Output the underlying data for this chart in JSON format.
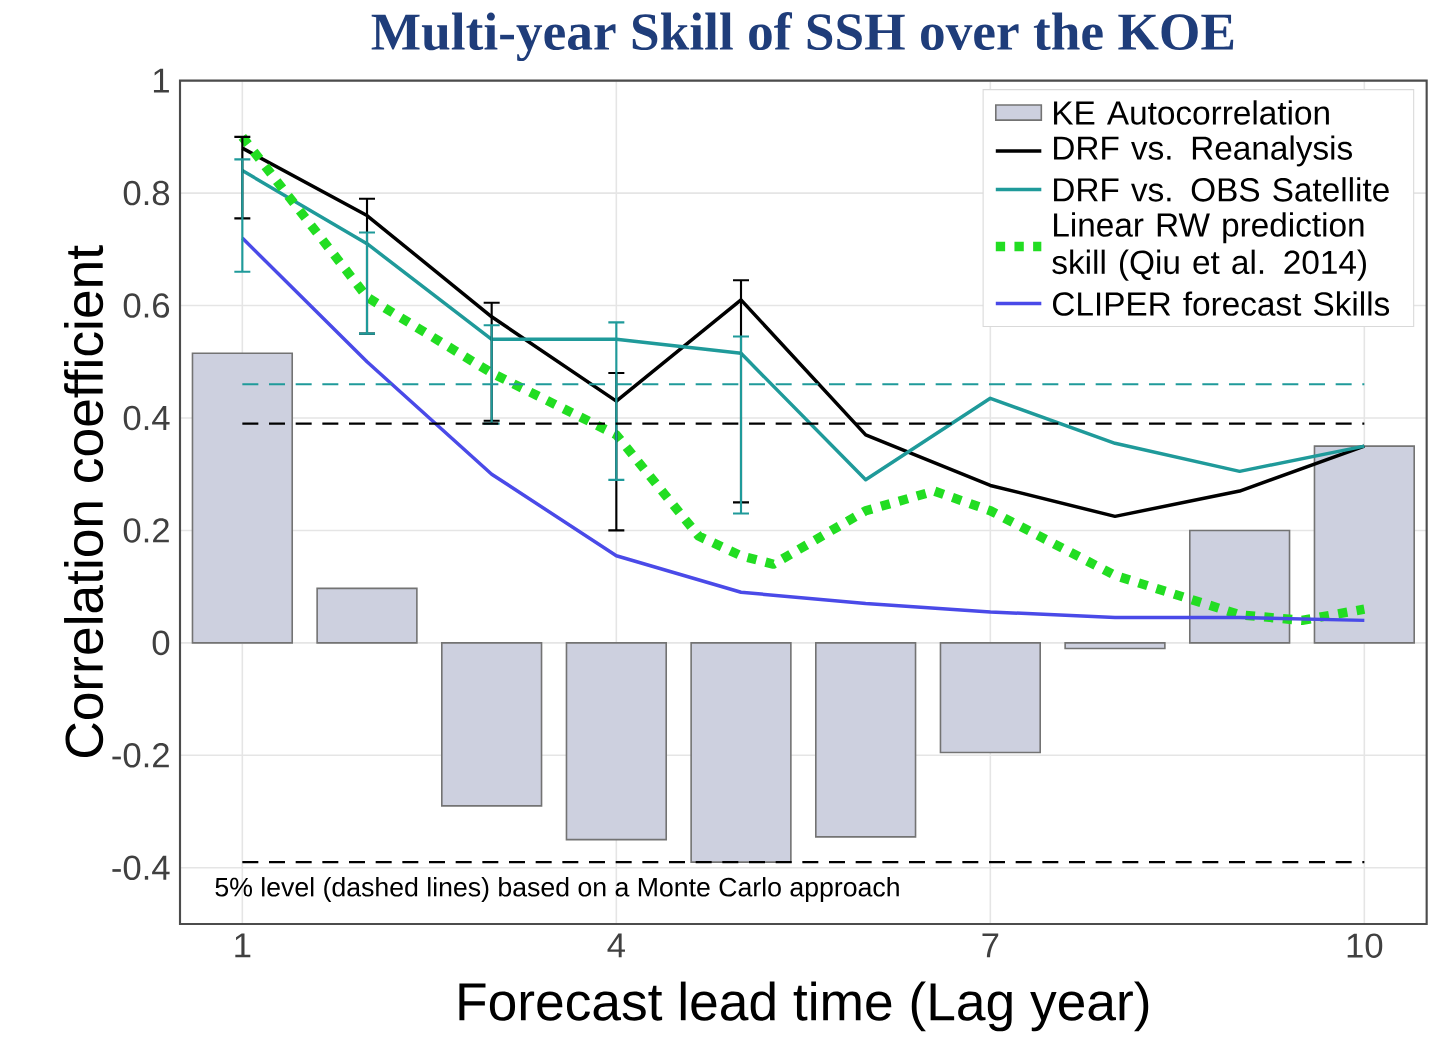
{
  "chart_data": {
    "type": "bar",
    "title": "Multi-year Skill of SSH over the KOE",
    "xlabel": "Forecast lead time (Lag year)",
    "ylabel": "Correlation coefficient",
    "x": [
      1,
      2,
      3,
      4,
      5,
      6,
      7,
      8,
      9,
      10
    ],
    "xlim": [
      0.5,
      10.5
    ],
    "xticks": [
      1,
      4,
      7,
      10
    ],
    "ylim": [
      -0.5,
      1
    ],
    "yticks": [
      -0.4,
      -0.2,
      0,
      0.2,
      0.4,
      0.6,
      0.8,
      1
    ],
    "grid": true,
    "legend": "top right",
    "series": [
      {
        "name": "KE Autocorrelation",
        "color": "#cdd0df",
        "values": [
          0.515,
          0.097,
          -0.29,
          -0.35,
          -0.39,
          -0.345,
          -0.195,
          -0.01,
          0.2,
          0.35
        ]
      },
      {
        "name": "DRF vs. Reanalysis",
        "type": "line",
        "color": "#000000",
        "line_style": "solid",
        "values": [
          0.88,
          0.76,
          0.58,
          0.43,
          0.61,
          0.37,
          0.28,
          0.225,
          0.27,
          0.35
        ],
        "errors": [
          [
            0.755,
            0.9
          ],
          [
            0.55,
            0.79
          ],
          [
            0.395,
            0.605
          ],
          [
            0.2,
            0.48
          ],
          [
            0.25,
            0.645
          ],
          null,
          null,
          null,
          null,
          null
        ]
      },
      {
        "name": "DRF vs. OBS Satellite",
        "type": "line",
        "color": "#1f9a9a",
        "line_style": "solid",
        "values": [
          0.84,
          0.71,
          0.54,
          0.54,
          0.515,
          0.29,
          0.435,
          0.355,
          0.305,
          0.35
        ],
        "errors": [
          [
            0.66,
            0.86
          ],
          [
            0.55,
            0.73
          ],
          [
            0.39,
            0.565
          ],
          [
            0.29,
            0.57
          ],
          [
            0.23,
            0.545
          ],
          null,
          null,
          null,
          null,
          null
        ]
      },
      {
        "name": "Linear RW prediction skill (Qiu et al. 2014)",
        "type": "line",
        "color": "#22dd22",
        "line_style": "dotted",
        "x": [
          1,
          2,
          3,
          4,
          4.66,
          5,
          5.26,
          6,
          6.55,
          7,
          8,
          9,
          9.5,
          10
        ],
        "values": [
          0.9,
          0.615,
          0.48,
          0.37,
          0.19,
          0.155,
          0.14,
          0.235,
          0.27,
          0.235,
          0.12,
          0.05,
          0.04,
          0.06
        ]
      },
      {
        "name": "CLIPER forecast Skills",
        "type": "line",
        "color": "#4a4ae8",
        "line_style": "solid",
        "values": [
          0.72,
          0.5,
          0.3,
          0.155,
          0.09,
          0.07,
          0.055,
          0.045,
          0.045,
          0.04
        ]
      }
    ],
    "ref_lines": [
      {
        "axis": "y",
        "value": 0.46,
        "color": "#1f9a9a",
        "line_style": "dashed"
      },
      {
        "axis": "y",
        "value": 0.39,
        "color": "#000000",
        "line_style": "dashed"
      },
      {
        "axis": "y",
        "value": -0.39,
        "color": "#000000",
        "line_style": "dashed"
      }
    ],
    "annotations": [
      "5% level (dashed lines) based on a Monte Carlo approach"
    ]
  }
}
